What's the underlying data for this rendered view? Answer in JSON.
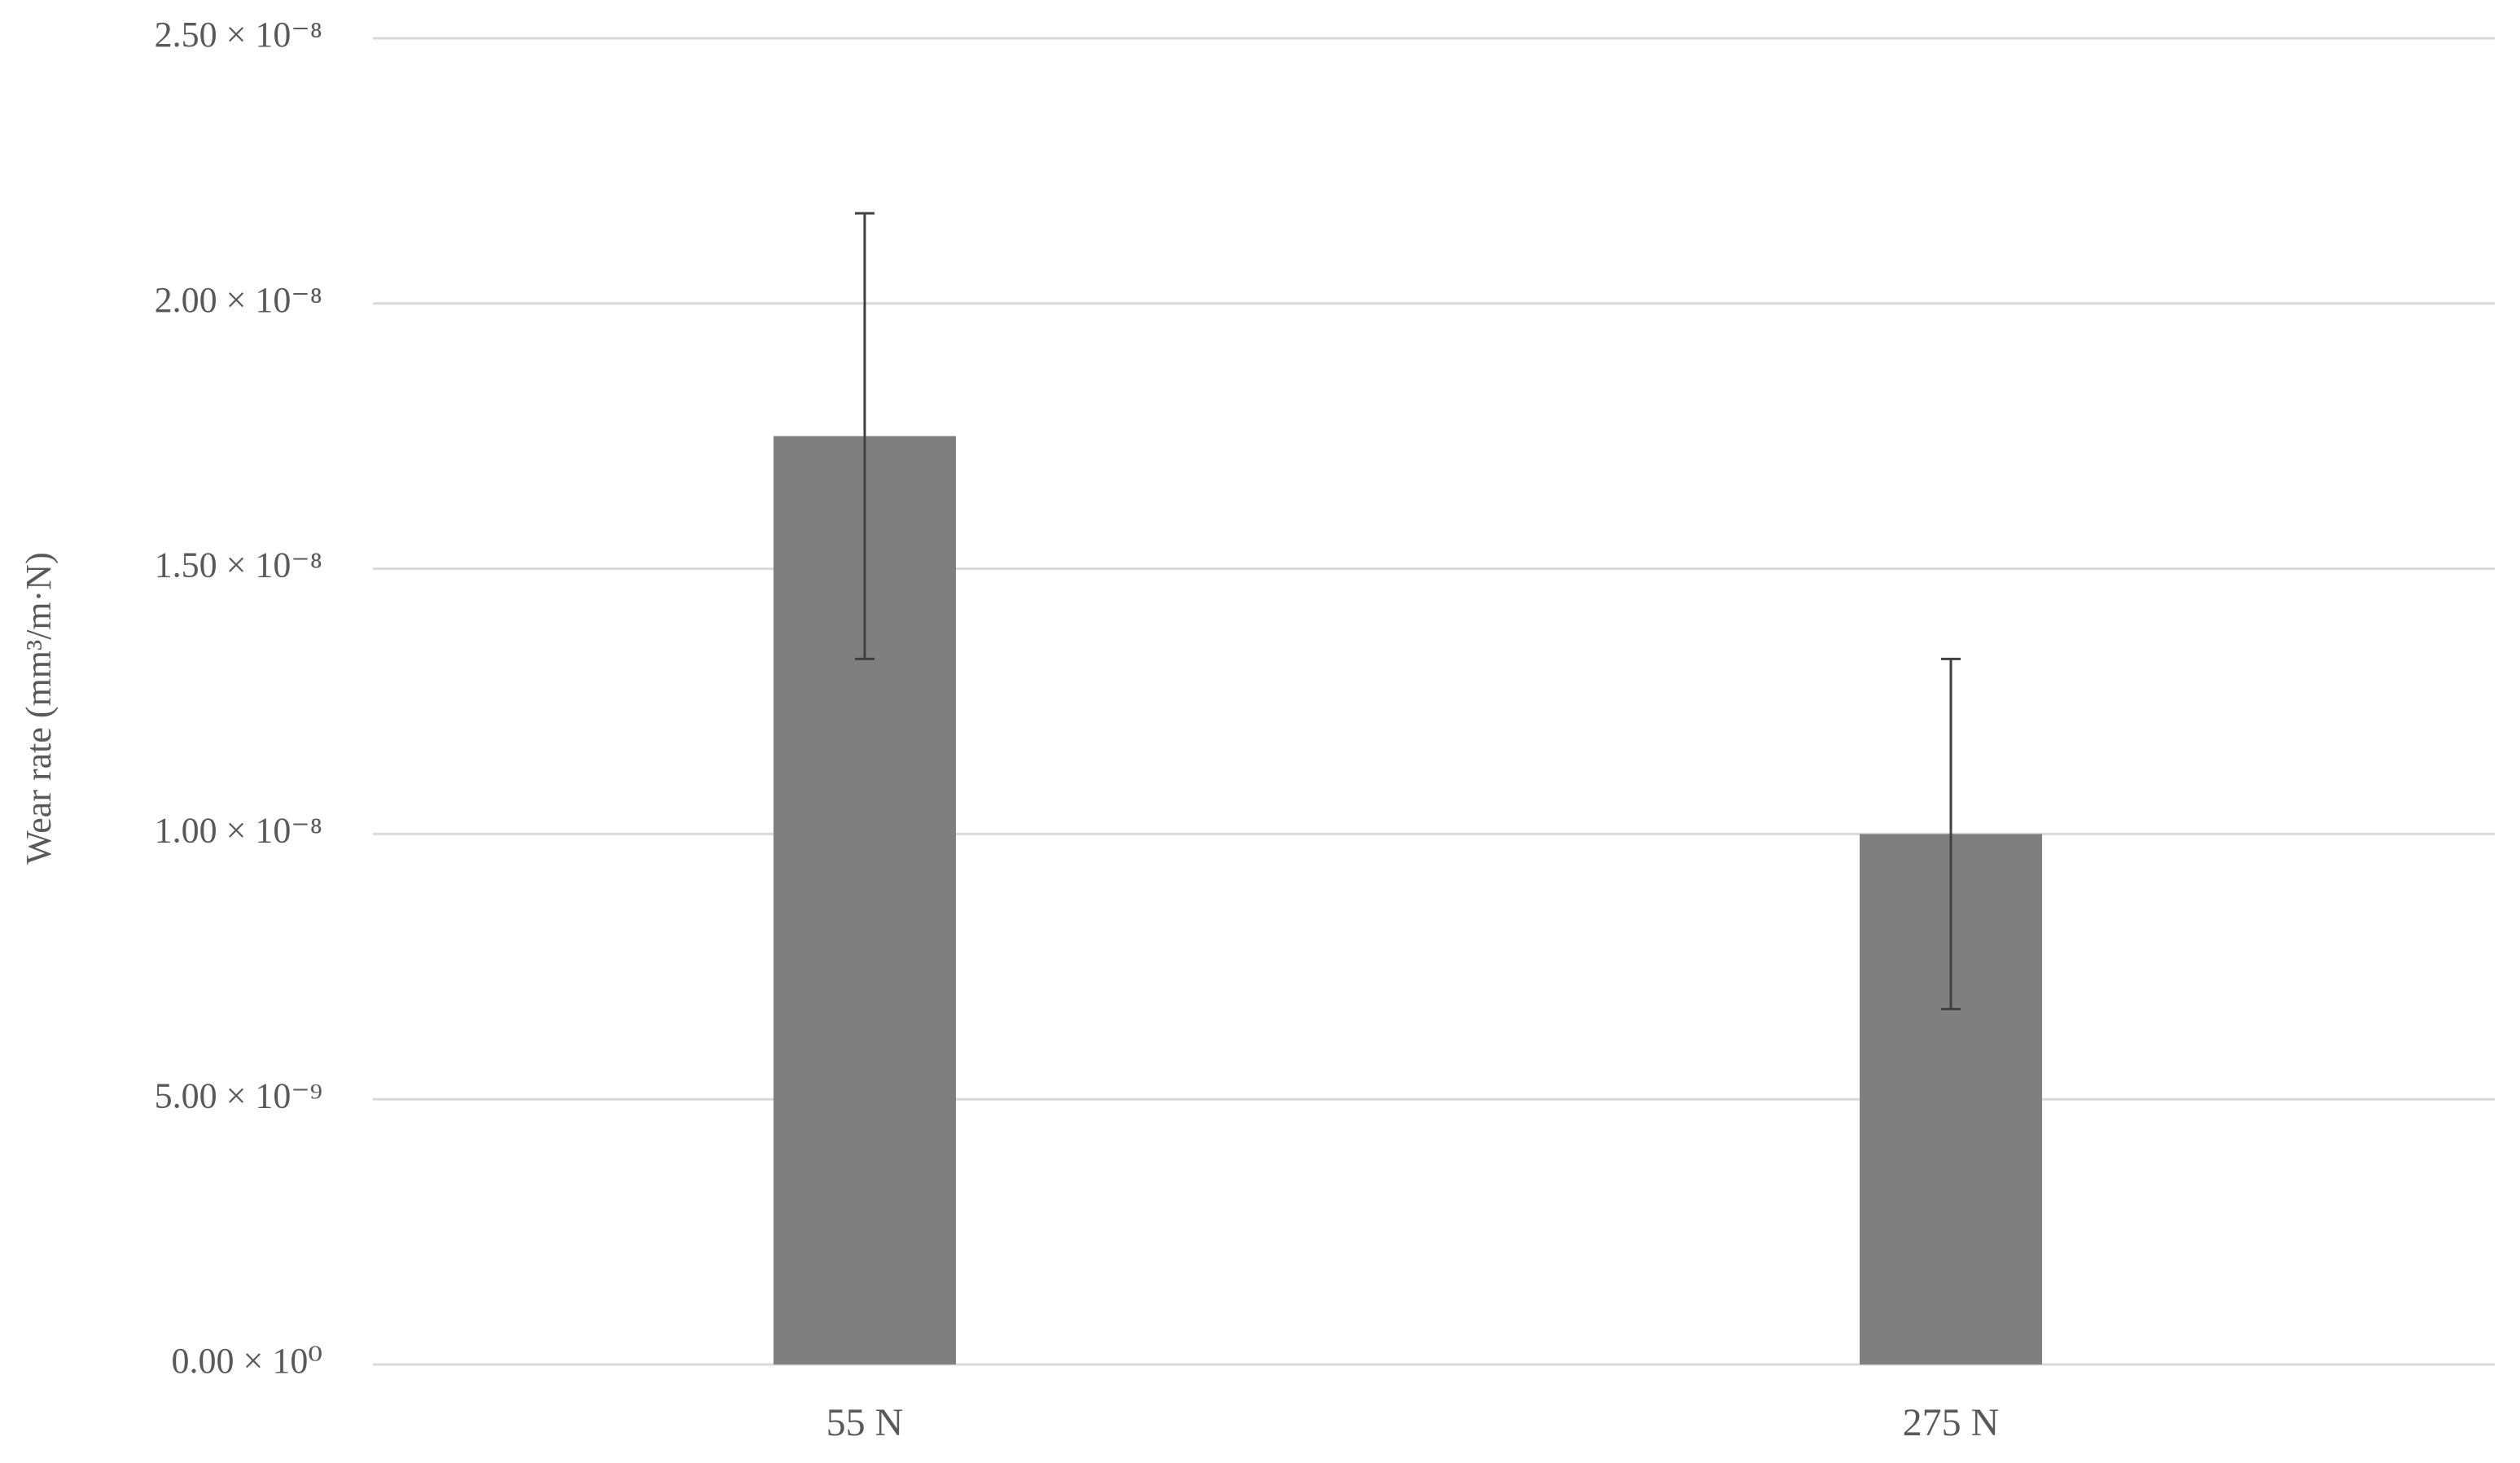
{
  "chart_data": {
    "type": "bar",
    "y_label": "Wear rate (mm³/m·N)",
    "categories": [
      "55 N",
      "275 N"
    ],
    "values": [
      1.75e-08,
      1e-08
    ],
    "errors": [
      4.2e-09,
      3.3e-09
    ],
    "color": "#7f7f7f",
    "ylim": [
      0,
      2.5e-08
    ],
    "yticks": [
      {
        "value": 0,
        "label": "0.00 × 10⁰"
      },
      {
        "value": 5e-09,
        "label": "5.00 × 10⁻⁹"
      },
      {
        "value": 1e-08,
        "label": "1.00 × 10⁻⁸"
      },
      {
        "value": 1.5e-08,
        "label": "1.50 × 10⁻⁸"
      },
      {
        "value": 2e-08,
        "label": "2.00 × 10⁻⁸"
      },
      {
        "value": 2.5e-08,
        "label": "2.50 × 10⁻⁸"
      }
    ],
    "grid": true
  }
}
